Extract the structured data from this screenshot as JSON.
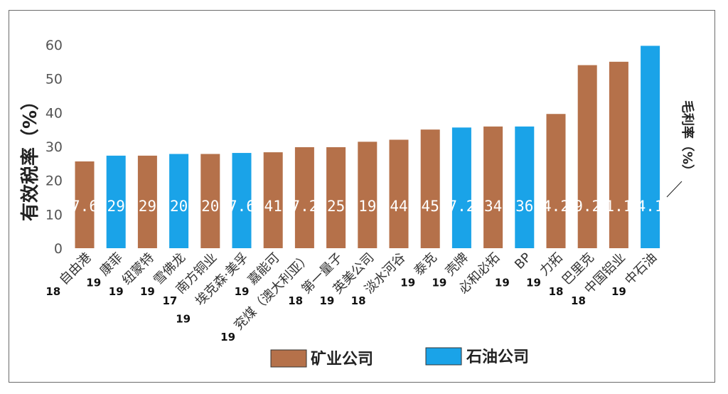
{
  "chart_data": {
    "type": "bar",
    "ylabel": "有效税率（%）",
    "right_label": "毛利率（%）",
    "ylim": [
      0,
      60
    ],
    "yticks": [
      0,
      10,
      20,
      30,
      40,
      50,
      60
    ],
    "legend": {
      "position": "bottom",
      "entries": [
        {
          "key": "mining",
          "label": "矿业公司",
          "color": "#B5714A"
        },
        {
          "key": "oil",
          "label": "石油公司",
          "color": "#1AA3E8"
        }
      ]
    },
    "categories": [
      {
        "name": "自由港",
        "year": "18",
        "value": 25.6,
        "margin": "7.6",
        "group": "mining"
      },
      {
        "name": "康菲",
        "year": "19",
        "value": 27.3,
        "margin": "29",
        "group": "oil"
      },
      {
        "name": "纽蒙特",
        "year": "19",
        "value": 27.3,
        "margin": "29",
        "group": "mining"
      },
      {
        "name": "雪佛龙",
        "year": "19",
        "value": 27.8,
        "margin": "20",
        "group": "oil"
      },
      {
        "name": "南方铜业",
        "year": "17",
        "value": 27.8,
        "margin": "20",
        "group": "mining"
      },
      {
        "name": "埃克森·美孚",
        "year": "19",
        "value": 28.1,
        "margin": "7.6",
        "group": "oil"
      },
      {
        "name": "嘉能可",
        "year": "19",
        "value": 28.3,
        "margin": "41",
        "group": "mining"
      },
      {
        "name": "兖煤（澳大利亚）",
        "year": "19",
        "value": 29.8,
        "margin": "7.2",
        "group": "mining"
      },
      {
        "name": "第一量子",
        "year": "18",
        "value": 29.8,
        "margin": "25",
        "group": "mining"
      },
      {
        "name": "英美公司",
        "year": "19",
        "value": 31.4,
        "margin": "19",
        "group": "mining"
      },
      {
        "name": "淡水河谷",
        "year": "18",
        "value": 32.0,
        "margin": "44",
        "group": "mining"
      },
      {
        "name": "泰克",
        "year": "19",
        "value": 35.0,
        "margin": "45",
        "group": "mining"
      },
      {
        "name": "壳牌",
        "year": "19",
        "value": 35.6,
        "margin": "7.2",
        "group": "oil"
      },
      {
        "name": "必和必拓",
        "year": "",
        "value": 35.9,
        "margin": "34",
        "group": "mining"
      },
      {
        "name": "BP",
        "year": "19",
        "value": 35.9,
        "margin": "36",
        "group": "oil"
      },
      {
        "name": "力拓",
        "year": "19",
        "value": 39.6,
        "margin": "4.2",
        "group": "mining"
      },
      {
        "name": "巴里克",
        "year": "18",
        "value": 54.0,
        "margin": "9.2",
        "group": "mining"
      },
      {
        "name": "中国铝业",
        "year": "18",
        "value": 55.0,
        "margin": "1.1",
        "group": "mining"
      },
      {
        "name": "中石油",
        "year": "19",
        "value": 59.7,
        "margin": "4.1",
        "group": "oil"
      }
    ]
  }
}
